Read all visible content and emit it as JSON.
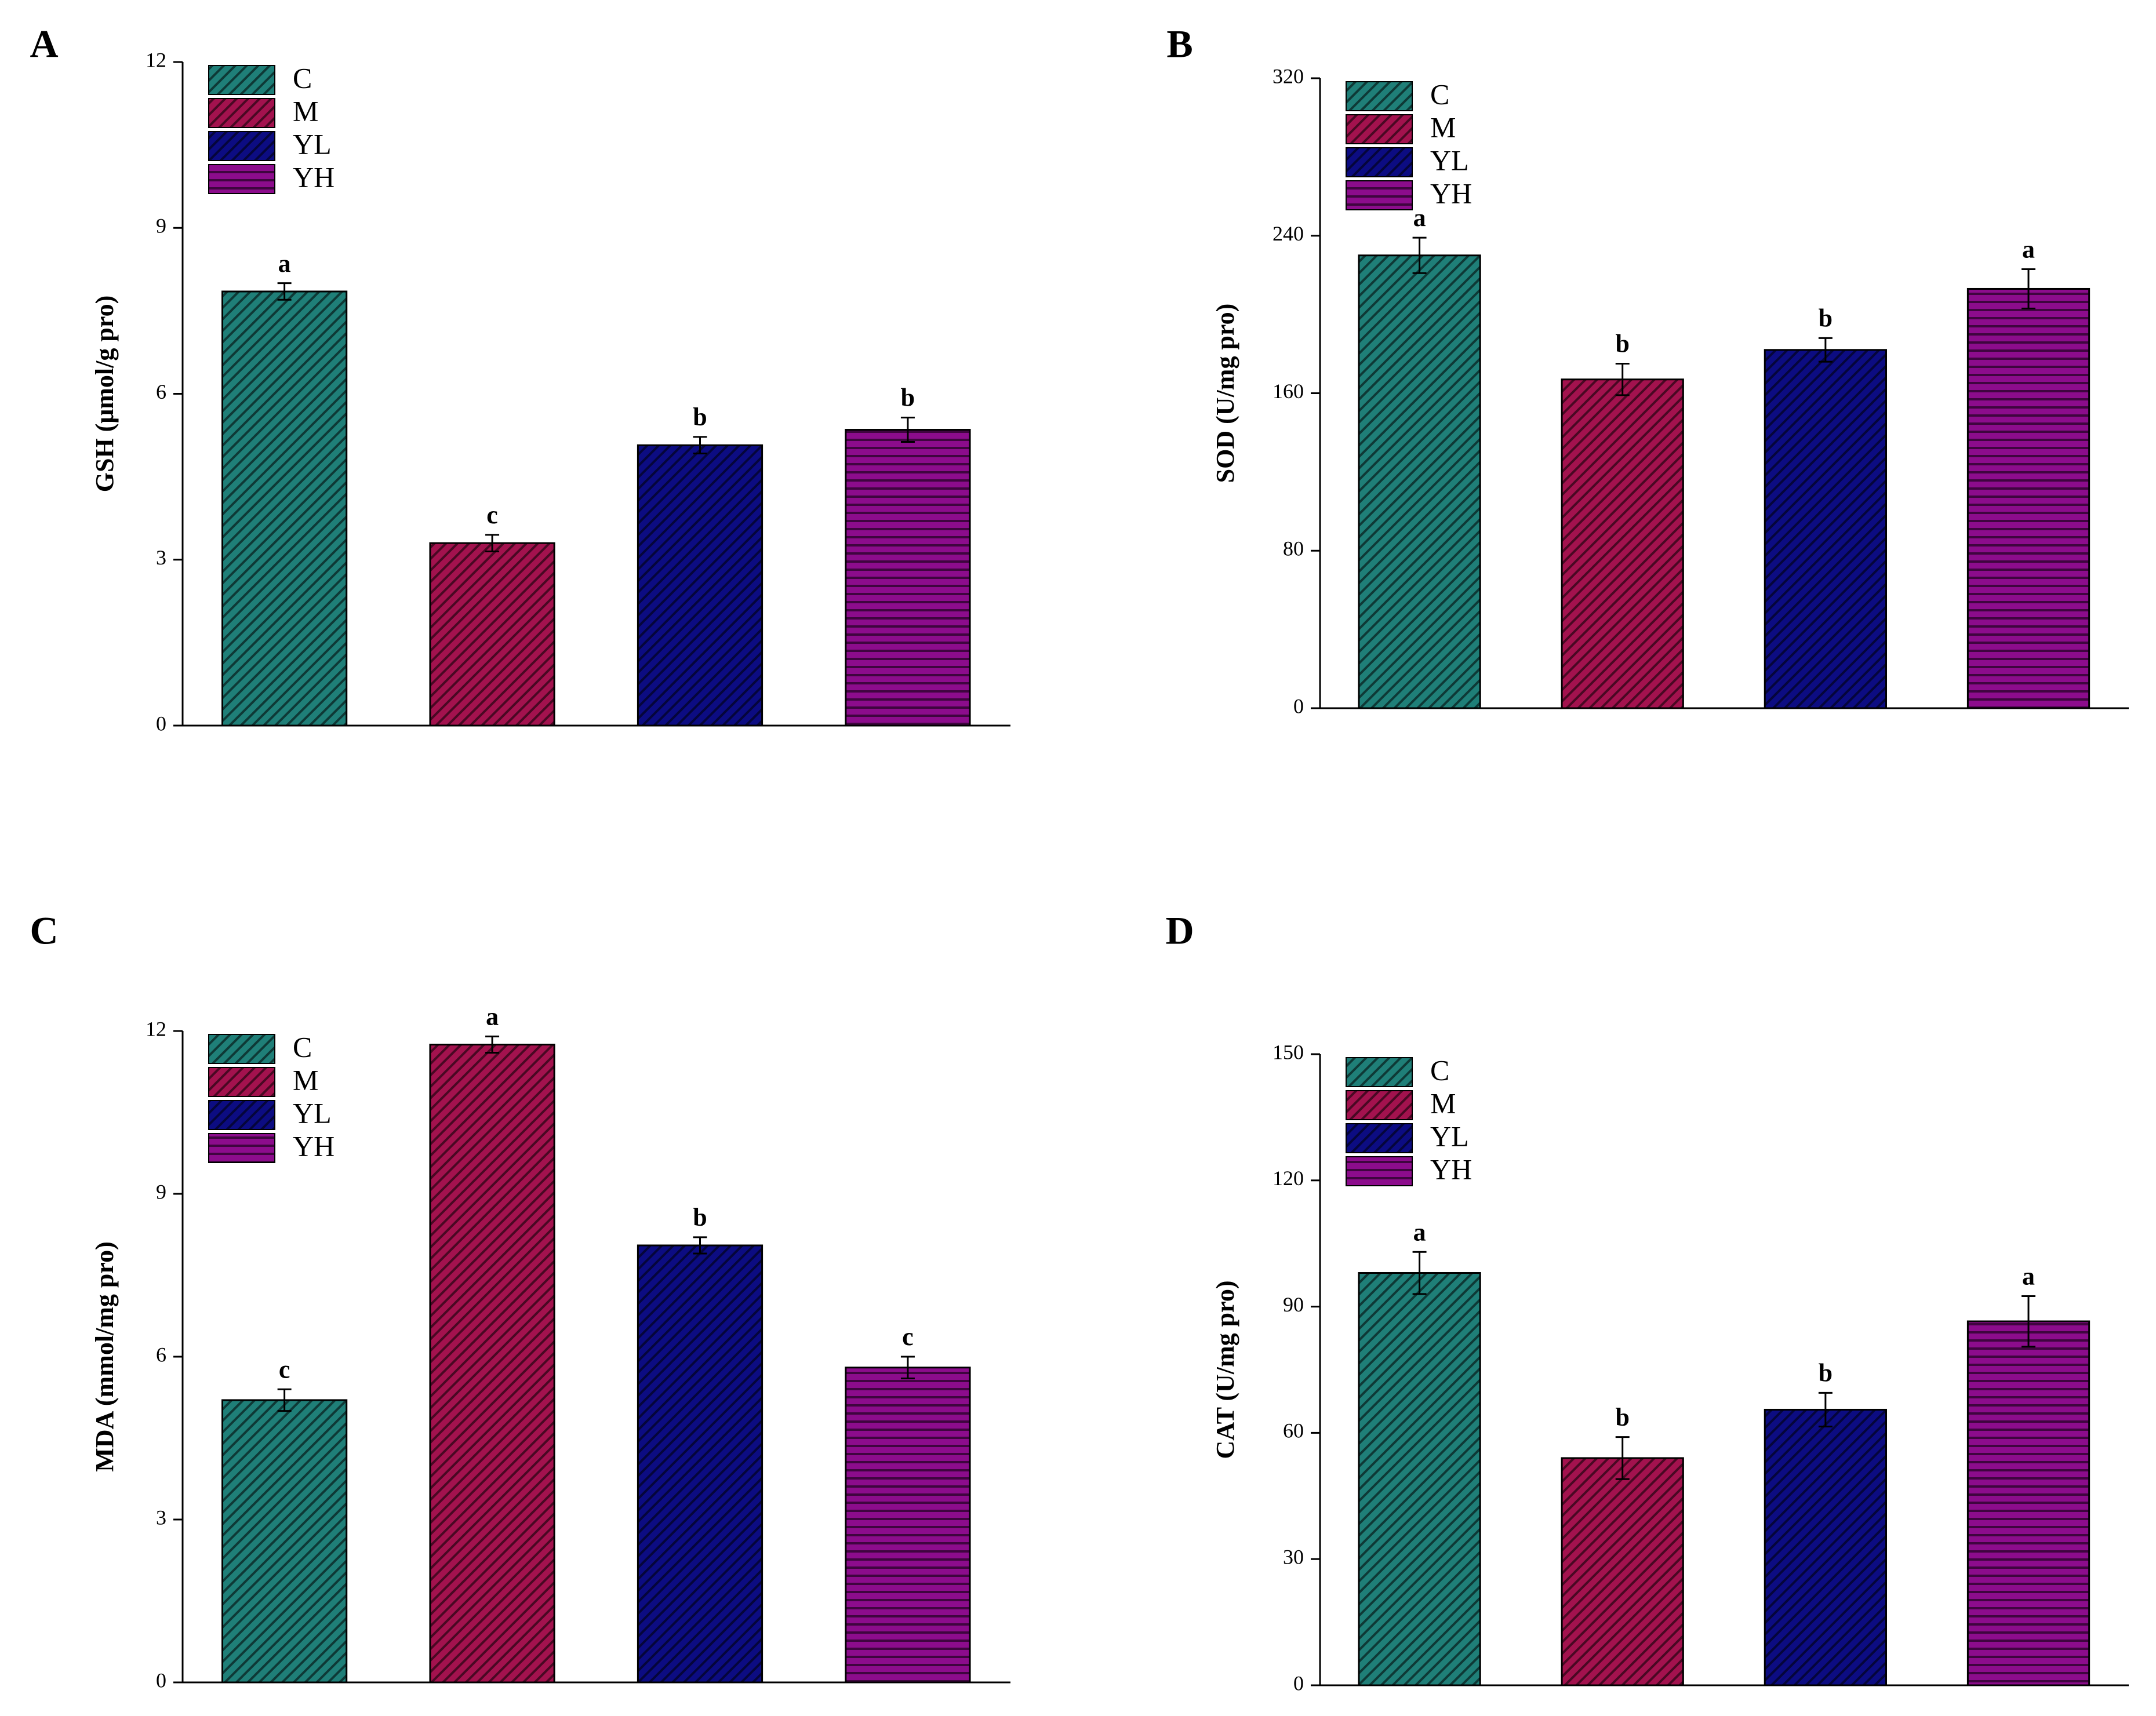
{
  "chart_data": [
    {
      "type": "bar",
      "panel": "A",
      "ylabel": "GSH (μmol/g pro)",
      "ylim": [
        0,
        12
      ],
      "yticks": [
        0,
        3,
        6,
        9,
        12
      ],
      "legend": "upper left",
      "series": [
        {
          "name": "C",
          "color": "#1f7f78",
          "hatch": "diagonal",
          "values": [
            7.85
          ],
          "errors": [
            0.15
          ],
          "letters": [
            "a"
          ]
        },
        {
          "name": "M",
          "color": "#a3124e",
          "hatch": "diagonal",
          "values": [
            3.3
          ],
          "errors": [
            0.15
          ],
          "letters": [
            "c"
          ]
        },
        {
          "name": "YL",
          "color": "#0c0c82",
          "hatch": "diagonal",
          "values": [
            5.07
          ],
          "errors": [
            0.15
          ],
          "letters": [
            "b"
          ]
        },
        {
          "name": "YH",
          "color": "#8c0c8c",
          "hatch": "horizontal",
          "values": [
            5.35
          ],
          "errors": [
            0.22
          ],
          "letters": [
            "b"
          ]
        }
      ]
    },
    {
      "type": "bar",
      "panel": "B",
      "ylabel": "SOD (U/mg pro)",
      "ylim": [
        0,
        320
      ],
      "yticks": [
        0,
        80,
        160,
        240,
        320
      ],
      "legend": "upper left",
      "series": [
        {
          "name": "C",
          "color": "#1f7f78",
          "hatch": "diagonal",
          "values": [
            230
          ],
          "errors": [
            9
          ],
          "letters": [
            "a"
          ]
        },
        {
          "name": "M",
          "color": "#a3124e",
          "hatch": "diagonal",
          "values": [
            167
          ],
          "errors": [
            8
          ],
          "letters": [
            "b"
          ]
        },
        {
          "name": "YL",
          "color": "#0c0c82",
          "hatch": "diagonal",
          "values": [
            182
          ],
          "errors": [
            6
          ],
          "letters": [
            "b"
          ]
        },
        {
          "name": "YH",
          "color": "#8c0c8c",
          "hatch": "horizontal",
          "values": [
            213
          ],
          "errors": [
            10
          ],
          "letters": [
            "a"
          ]
        }
      ]
    },
    {
      "type": "bar",
      "panel": "C",
      "ylabel": "MDA (mmol/mg pro)",
      "ylim": [
        0,
        12
      ],
      "yticks": [
        0,
        3,
        6,
        9,
        12
      ],
      "legend": "upper left",
      "series": [
        {
          "name": "C",
          "color": "#1f7f78",
          "hatch": "diagonal",
          "values": [
            5.2
          ],
          "errors": [
            0.2
          ],
          "letters": [
            "c"
          ]
        },
        {
          "name": "M",
          "color": "#a3124e",
          "hatch": "diagonal",
          "values": [
            11.75
          ],
          "errors": [
            0.15
          ],
          "letters": [
            "a"
          ]
        },
        {
          "name": "YL",
          "color": "#0c0c82",
          "hatch": "diagonal",
          "values": [
            8.05
          ],
          "errors": [
            0.15
          ],
          "letters": [
            "b"
          ]
        },
        {
          "name": "YH",
          "color": "#8c0c8c",
          "hatch": "horizontal",
          "values": [
            5.8
          ],
          "errors": [
            0.2
          ],
          "letters": [
            "c"
          ]
        }
      ]
    },
    {
      "type": "bar",
      "panel": "D",
      "ylabel": "CAT (U/mg pro)",
      "ylim": [
        0,
        150
      ],
      "yticks": [
        0,
        30,
        60,
        90,
        120,
        150
      ],
      "legend": "upper left",
      "series": [
        {
          "name": "C",
          "color": "#1f7f78",
          "hatch": "diagonal",
          "values": [
            98
          ],
          "errors": [
            5
          ],
          "letters": [
            "a"
          ]
        },
        {
          "name": "M",
          "color": "#a3124e",
          "hatch": "diagonal",
          "values": [
            54
          ],
          "errors": [
            5
          ],
          "letters": [
            "b"
          ]
        },
        {
          "name": "YL",
          "color": "#0c0c82",
          "hatch": "diagonal",
          "values": [
            65.5
          ],
          "errors": [
            4
          ],
          "letters": [
            "b"
          ]
        },
        {
          "name": "YH",
          "color": "#8c0c8c",
          "hatch": "horizontal",
          "values": [
            86.5
          ],
          "errors": [
            6
          ],
          "letters": [
            "a"
          ]
        }
      ]
    }
  ]
}
